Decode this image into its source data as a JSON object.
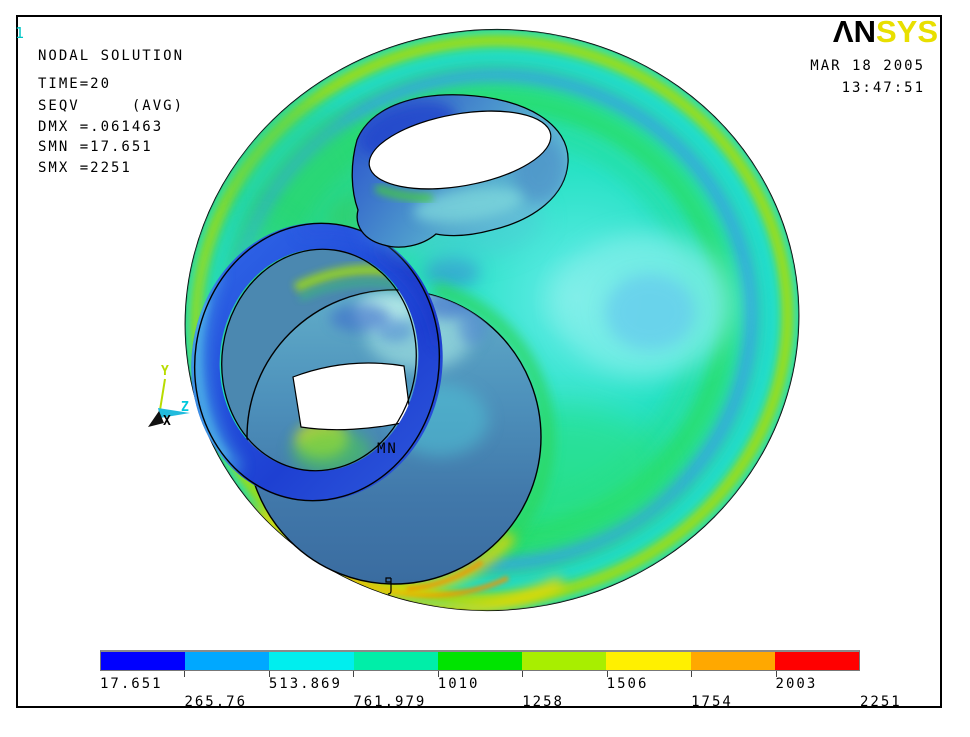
{
  "window": {
    "plot_number": "1"
  },
  "header": {
    "lines": [
      "NODAL SOLUTION",
      "TIME=20",
      "SEQV     (AVG)",
      "DMX =.061463",
      "SMN =17.651",
      "SMX =2251"
    ]
  },
  "branding": {
    "logo_black": "ΛN",
    "logo_yellow": "SYS",
    "logo_yellow_color": "#E8DF00",
    "date": "MAR 18 2005",
    "time": "13:47:51"
  },
  "triad": {
    "x_label": "X",
    "y_label": "Y",
    "z_label": "Z",
    "x_color": "#000000",
    "y_color": "#B8DC00",
    "z_color": "#00C8DC"
  },
  "annotations": {
    "min_marker": "MN"
  },
  "legend": {
    "orientation": "horizontal",
    "boundaries": [
      "17.651",
      "265.76",
      "513.869",
      "761.979",
      "1010",
      "1258",
      "1506",
      "1754",
      "2003",
      "2251"
    ],
    "colors": [
      "#0000FF",
      "#00A8FF",
      "#00EEEE",
      "#00EEA8",
      "#00E400",
      "#A8EE00",
      "#FFF000",
      "#FFA800",
      "#FF0000"
    ]
  }
}
